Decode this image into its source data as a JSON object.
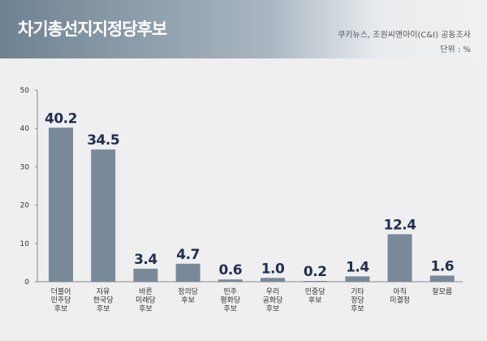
{
  "title": "차기총선지지정당후보",
  "source": "쿠키뉴스, 조원씨앤아이(C&I) 공동조사",
  "unit": "단위 : %",
  "colors": {
    "bar": "#788a9a",
    "value": "#1f2f4f",
    "axis": "#888888"
  },
  "chart_data": {
    "type": "bar",
    "title": "차기총선지지정당후보",
    "ylabel": "",
    "xlabel": "",
    "ylim": [
      0,
      50
    ],
    "yticks": [
      0,
      10,
      20,
      30,
      40,
      50
    ],
    "grid": false,
    "categories": [
      [
        "더불어",
        "민주당",
        "후보"
      ],
      [
        "자유",
        "한국당",
        "후보"
      ],
      [
        "바른",
        "미래당",
        "후보"
      ],
      [
        "정의당",
        "후보"
      ],
      [
        "민주",
        "평화당",
        "후보"
      ],
      [
        "우리",
        "공화당",
        "후보"
      ],
      [
        "민중당",
        "후보"
      ],
      [
        "기타",
        "정당",
        "후보"
      ],
      [
        "아직",
        "미결정"
      ],
      [
        "잘모름"
      ]
    ],
    "values": [
      40.2,
      34.5,
      3.4,
      4.7,
      0.6,
      1.0,
      0.2,
      1.4,
      12.4,
      1.6
    ],
    "value_labels": [
      "40.2",
      "34.5",
      "3.4",
      "4.7",
      "0.6",
      "1.0",
      "0.2",
      "1.4",
      "12.4",
      "1.6"
    ]
  }
}
